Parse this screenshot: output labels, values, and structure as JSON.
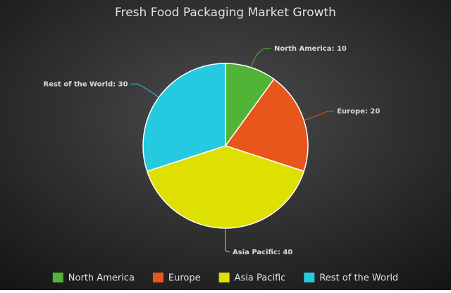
{
  "chart_data": {
    "type": "pie",
    "title": "Fresh Food Packaging Market Growth",
    "categories": [
      "North America",
      "Europe",
      "Asia Pacific",
      "Rest of the World"
    ],
    "values": [
      10,
      20,
      40,
      30
    ],
    "value_labels": [
      "North America: 10",
      "Europe: 20",
      "Asia Pacific: 40",
      "Rest of the World: 30"
    ],
    "colors": [
      "#52b436",
      "#e8561c",
      "#dde000",
      "#25c9e0"
    ],
    "legend": "bottom"
  }
}
